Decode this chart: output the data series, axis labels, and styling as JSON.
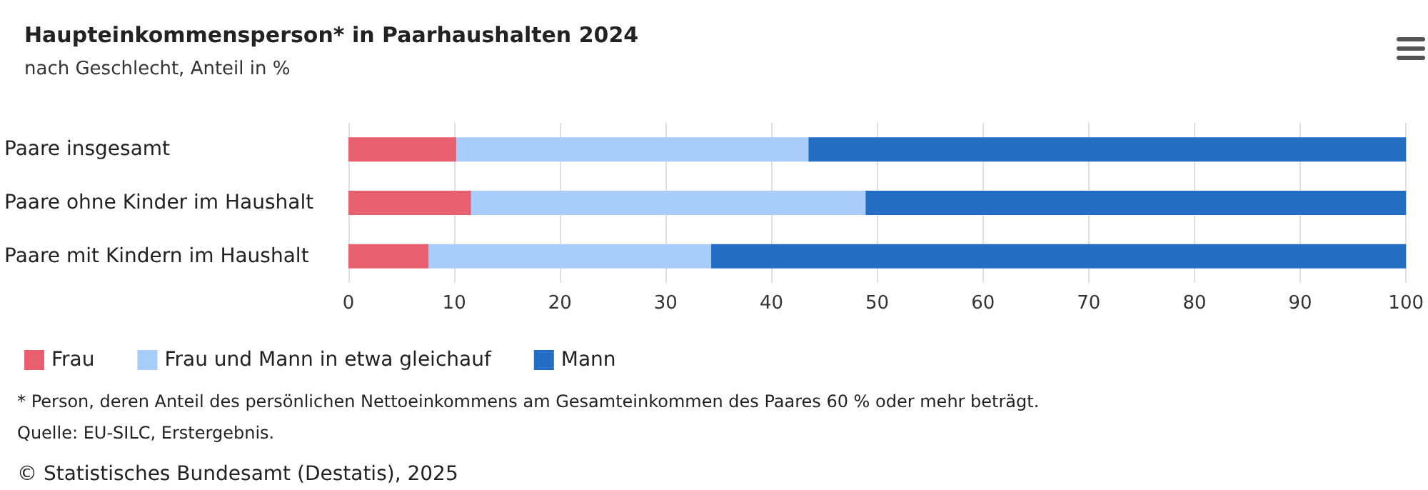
{
  "chart_data": {
    "type": "bar",
    "orientation": "horizontal",
    "stacked": true,
    "title": "Haupteinkommensperson* in Paarhaushalten 2024",
    "subtitle": "nach Geschlecht, Anteil in %",
    "categories": [
      "Paare insgesamt",
      "Paare ohne Kinder im Haushalt",
      "Paare mit Kindern im Haushalt"
    ],
    "series": [
      {
        "name": "Frau",
        "color": "#e8606f",
        "values": [
          10.2,
          11.6,
          7.6
        ]
      },
      {
        "name": "Frau und Mann in etwa gleichauf",
        "color": "#a8cdfa",
        "values": [
          33.3,
          37.3,
          26.7
        ]
      },
      {
        "name": "Mann",
        "color": "#246dc4",
        "values": [
          56.5,
          51.1,
          65.7
        ]
      }
    ],
    "xlim": [
      0,
      100
    ],
    "xticks": [
      0,
      10,
      20,
      30,
      40,
      50,
      60,
      70,
      80,
      90,
      100
    ],
    "grid": "x",
    "legend": "bottom left",
    "annotations": [
      "* Person, deren Anteil des persönlichen Nettoeinkommens am Gesamteinkommen des Paares 60 % oder mehr beträgt.",
      "Quelle: EU-SILC, Erstergebnis.",
      "© Statistisches Bundesamt (Destatis), 2025"
    ]
  }
}
